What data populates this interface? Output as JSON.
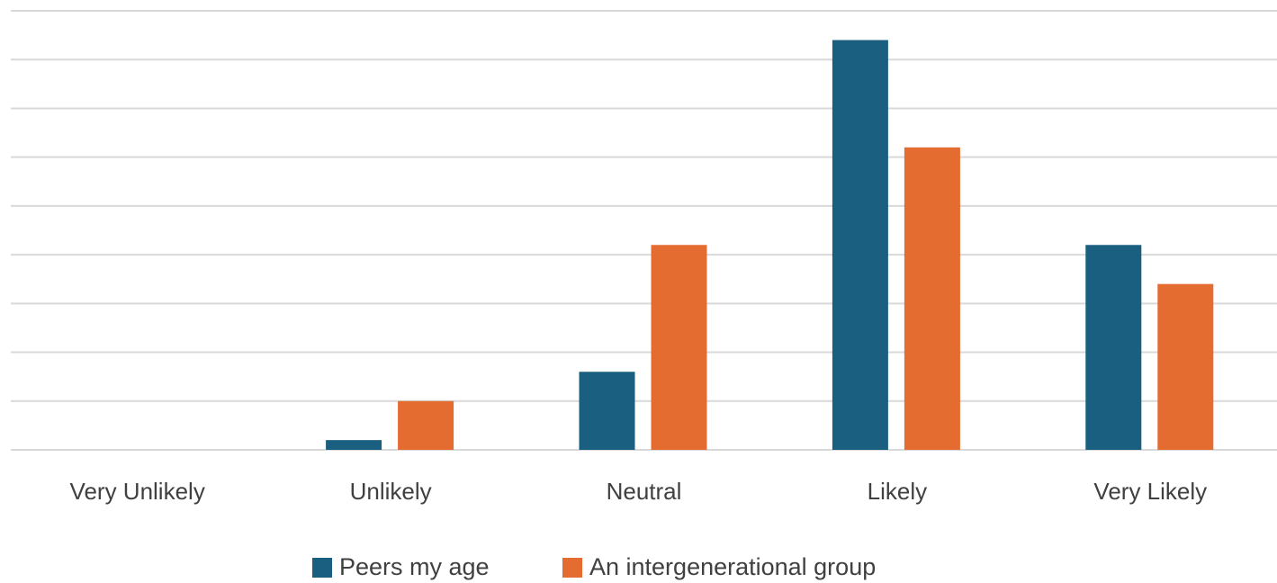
{
  "chart_data": {
    "type": "bar",
    "categories": [
      "Very Unlikely",
      "Unlikely",
      "Neutral",
      "Likely",
      "Very Likely"
    ],
    "series": [
      {
        "name": "Peers my age",
        "color": "#1a5f80",
        "values": [
          0,
          0.2,
          1.6,
          8.4,
          4.2
        ]
      },
      {
        "name": "An intergenerational group",
        "color": "#e46c31",
        "values": [
          0,
          1.0,
          4.2,
          6.2,
          3.4
        ]
      }
    ],
    "ylim": [
      0,
      9
    ],
    "yticks": [
      0,
      1,
      2,
      3,
      4,
      5,
      6,
      7,
      8,
      9
    ],
    "grid": true,
    "legend": "bottom"
  }
}
